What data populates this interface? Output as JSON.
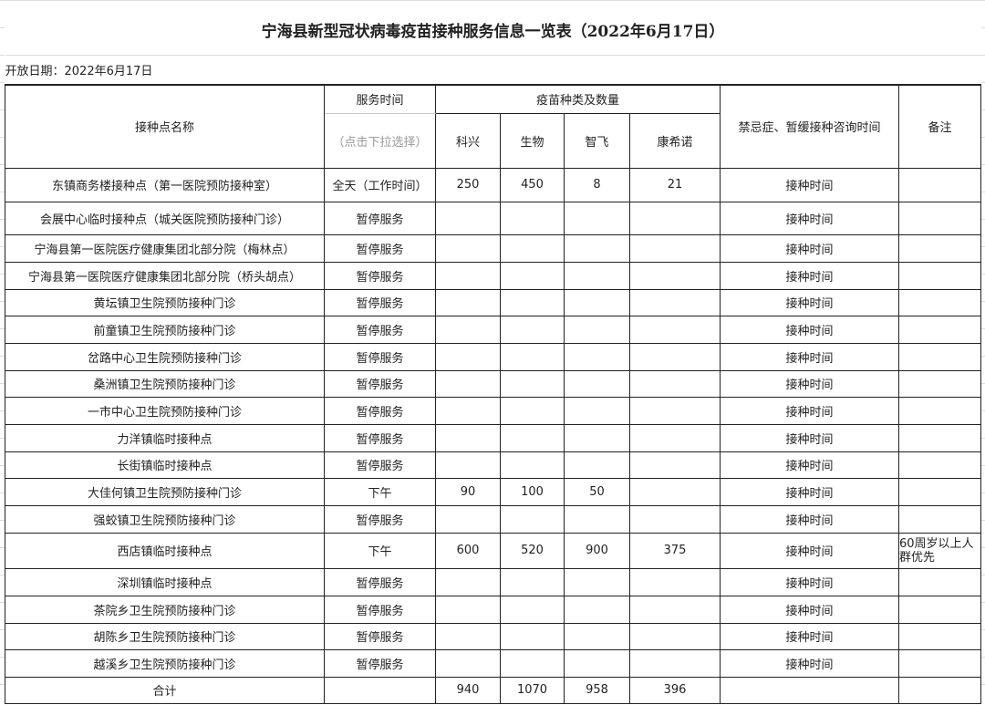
{
  "title": "宁海县新型冠状病毒疫苗接种服务信息一览表（2022年6月17日）",
  "open_date": "开放日期：2022年6月17日",
  "headers": {
    "site": "接种点名称",
    "service_time": "服务时间",
    "service_hint": "（点击下拉选择）",
    "vaccines": "疫苗种类及数量",
    "kexing": "科兴",
    "shengwu": "生物",
    "zhifei": "智飞",
    "kangxinuo": "康希诺",
    "consult": "禁忌症、暂缓接种咨询时间",
    "remark": "备注"
  },
  "rows": [
    {
      "site": "东镇商务楼接种点（第一医院预防接种室）",
      "time": "全天（工作时间）",
      "kexing": "250",
      "shengwu": "450",
      "zhifei": "8",
      "kangxinuo": "21",
      "consult": "接种时间",
      "remark": ""
    },
    {
      "site": "会展中心临时接种点（城关医院预防接种门诊）",
      "time": "暂停服务",
      "kexing": "",
      "shengwu": "",
      "zhifei": "",
      "kangxinuo": "",
      "consult": "接种时间",
      "remark": ""
    },
    {
      "site": "宁海县第一医院医疗健康集团北部分院（梅林点）",
      "time": "暂停服务",
      "kexing": "",
      "shengwu": "",
      "zhifei": "",
      "kangxinuo": "",
      "consult": "接种时间",
      "remark": ""
    },
    {
      "site": "宁海县第一医院医疗健康集团北部分院（桥头胡点）",
      "time": "暂停服务",
      "kexing": "",
      "shengwu": "",
      "zhifei": "",
      "kangxinuo": "",
      "consult": "接种时间",
      "remark": ""
    },
    {
      "site": "黄坛镇卫生院预防接种门诊",
      "time": "暂停服务",
      "kexing": "",
      "shengwu": "",
      "zhifei": "",
      "kangxinuo": "",
      "consult": "接种时间",
      "remark": ""
    },
    {
      "site": "前童镇卫生院预防接种门诊",
      "time": "暂停服务",
      "kexing": "",
      "shengwu": "",
      "zhifei": "",
      "kangxinuo": "",
      "consult": "接种时间",
      "remark": ""
    },
    {
      "site": "岔路中心卫生院预防接种门诊",
      "time": "暂停服务",
      "kexing": "",
      "shengwu": "",
      "zhifei": "",
      "kangxinuo": "",
      "consult": "接种时间",
      "remark": ""
    },
    {
      "site": "桑洲镇卫生院预防接种门诊",
      "time": "暂停服务",
      "kexing": "",
      "shengwu": "",
      "zhifei": "",
      "kangxinuo": "",
      "consult": "接种时间",
      "remark": ""
    },
    {
      "site": "一市中心卫生院预防接种门诊",
      "time": "暂停服务",
      "kexing": "",
      "shengwu": "",
      "zhifei": "",
      "kangxinuo": "",
      "consult": "接种时间",
      "remark": ""
    },
    {
      "site": "力洋镇临时接种点",
      "time": "暂停服务",
      "kexing": "",
      "shengwu": "",
      "zhifei": "",
      "kangxinuo": "",
      "consult": "接种时间",
      "remark": ""
    },
    {
      "site": "长街镇临时接种点",
      "time": "暂停服务",
      "kexing": "",
      "shengwu": "",
      "zhifei": "",
      "kangxinuo": "",
      "consult": "接种时间",
      "remark": ""
    },
    {
      "site": "大佳何镇卫生院预防接种门诊",
      "time": "下午",
      "kexing": "90",
      "shengwu": "100",
      "zhifei": "50",
      "kangxinuo": "",
      "consult": "接种时间",
      "remark": ""
    },
    {
      "site": "强蛟镇卫生院预防接种门诊",
      "time": "暂停服务",
      "kexing": "",
      "shengwu": "",
      "zhifei": "",
      "kangxinuo": "",
      "consult": "接种时间",
      "remark": ""
    },
    {
      "site": "西店镇临时接种点",
      "time": "下午",
      "kexing": "600",
      "shengwu": "520",
      "zhifei": "900",
      "kangxinuo": "375",
      "consult": "接种时间",
      "remark": "60周岁以上人群优先"
    },
    {
      "site": "深圳镇临时接种点",
      "time": "暂停服务",
      "kexing": "",
      "shengwu": "",
      "zhifei": "",
      "kangxinuo": "",
      "consult": "接种时间",
      "remark": ""
    },
    {
      "site": "茶院乡卫生院预防接种门诊",
      "time": "暂停服务",
      "kexing": "",
      "shengwu": "",
      "zhifei": "",
      "kangxinuo": "",
      "consult": "接种时间",
      "remark": ""
    },
    {
      "site": "胡陈乡卫生院预防接种门诊",
      "time": "暂停服务",
      "kexing": "",
      "shengwu": "",
      "zhifei": "",
      "kangxinuo": "",
      "consult": "接种时间",
      "remark": ""
    },
    {
      "site": "越溪乡卫生院预防接种门诊",
      "time": "暂停服务",
      "kexing": "",
      "shengwu": "",
      "zhifei": "",
      "kangxinuo": "",
      "consult": "接种时间",
      "remark": ""
    },
    {
      "site": "合计",
      "time": "",
      "kexing": "940",
      "shengwu": "1070",
      "zhifei": "958",
      "kangxinuo": "396",
      "consult": "",
      "remark": ""
    }
  ]
}
